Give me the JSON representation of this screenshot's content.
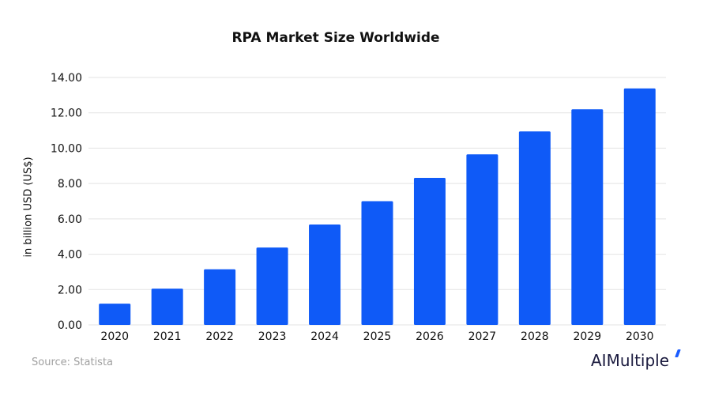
{
  "chart_data": {
    "type": "bar",
    "title": "RPA Market Size Worldwide",
    "ylabel": "in billion USD (US$)",
    "xlabel": "",
    "categories": [
      "2020",
      "2021",
      "2022",
      "2023",
      "2024",
      "2025",
      "2026",
      "2027",
      "2028",
      "2029",
      "2030"
    ],
    "values": [
      1.2,
      2.05,
      3.15,
      4.38,
      5.68,
      7.0,
      8.32,
      9.65,
      10.95,
      12.2,
      13.38
    ],
    "yticks": [
      "0.00",
      "2.00",
      "4.00",
      "6.00",
      "8.00",
      "10.00",
      "12.00",
      "14.00"
    ],
    "ylim": [
      0,
      14
    ],
    "grid": true,
    "bar_color": "#0f5af7"
  },
  "footer": {
    "source": "Source: Statista",
    "logo": "AIMultiple"
  }
}
